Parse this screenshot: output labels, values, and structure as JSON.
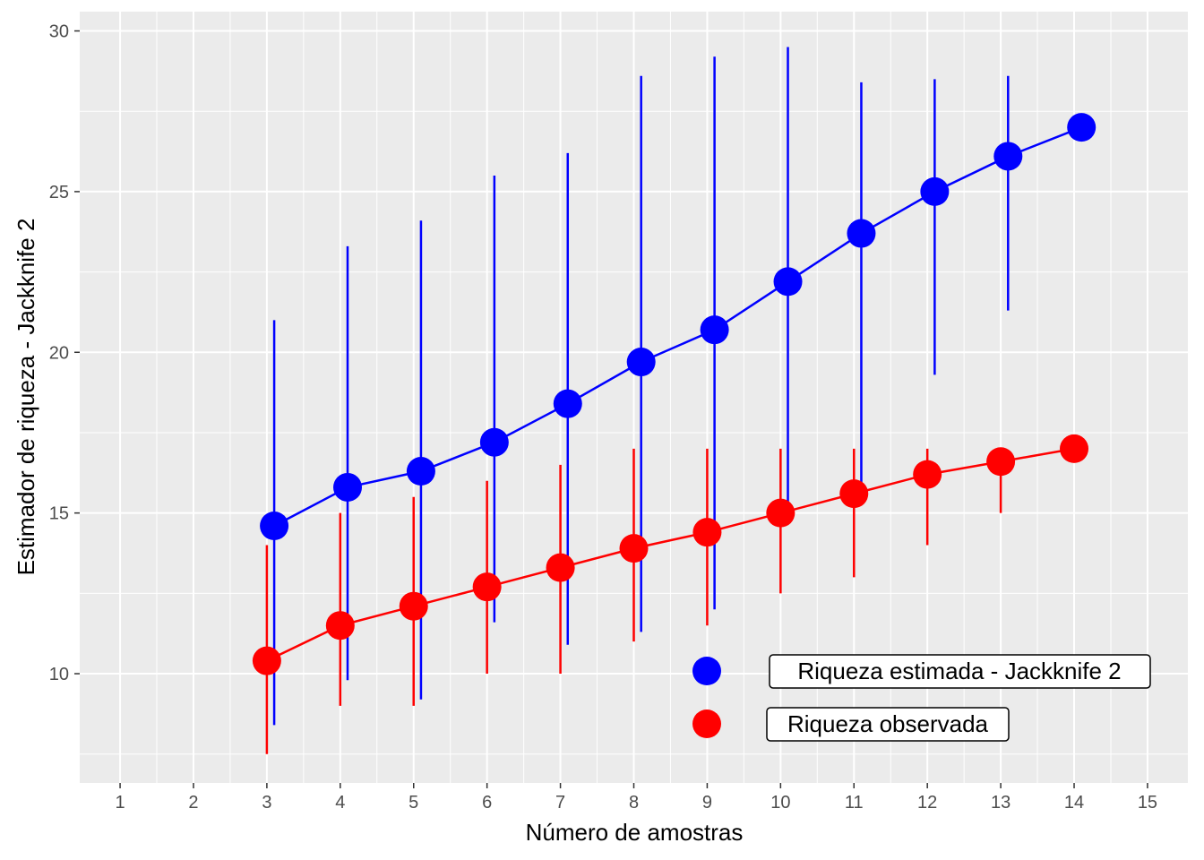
{
  "chart_data": {
    "type": "line",
    "title": "",
    "xlabel": "Número de amostras",
    "ylabel": "Estimador de riqueza - Jackknife 2",
    "xlim": [
      0.45,
      15.55
    ],
    "ylim": [
      6.6,
      30.6
    ],
    "x_ticks": [
      1,
      2,
      3,
      4,
      5,
      6,
      7,
      8,
      9,
      10,
      11,
      12,
      13,
      14,
      15
    ],
    "y_ticks": [
      10,
      15,
      20,
      25,
      30
    ],
    "grid": true,
    "legend_position": "bottom-right",
    "series": [
      {
        "name": "Riqueza estimada - Jackknife 2",
        "color": "#0000ff",
        "x_offset": 0.1,
        "x": [
          3,
          4,
          5,
          6,
          7,
          8,
          9,
          10,
          11,
          12,
          13,
          14
        ],
        "y": [
          14.6,
          15.8,
          16.3,
          17.2,
          18.4,
          19.7,
          20.7,
          22.2,
          23.7,
          25.0,
          26.1,
          27.0
        ],
        "lower": [
          8.4,
          9.8,
          9.2,
          11.6,
          10.9,
          11.3,
          12.0,
          14.9,
          15.4,
          19.3,
          21.3,
          27.0
        ],
        "upper": [
          21.0,
          23.3,
          24.1,
          25.5,
          26.2,
          28.6,
          29.2,
          29.5,
          28.4,
          28.5,
          28.6,
          27.0
        ]
      },
      {
        "name": "Riqueza observada",
        "color": "#ff0000",
        "x_offset": 0,
        "x": [
          3,
          4,
          5,
          6,
          7,
          8,
          9,
          10,
          11,
          12,
          13,
          14
        ],
        "y": [
          10.4,
          11.5,
          12.1,
          12.7,
          13.3,
          13.9,
          14.4,
          15.0,
          15.6,
          16.2,
          16.6,
          17.0
        ],
        "lower": [
          7.5,
          9.0,
          9.0,
          10.0,
          10.0,
          11.0,
          11.5,
          12.5,
          13.0,
          14.0,
          15.0,
          17.0
        ],
        "upper": [
          14.0,
          15.0,
          15.5,
          16.0,
          16.5,
          17.0,
          17.0,
          17.0,
          17.0,
          17.0,
          16.6,
          17.0
        ]
      }
    ]
  }
}
